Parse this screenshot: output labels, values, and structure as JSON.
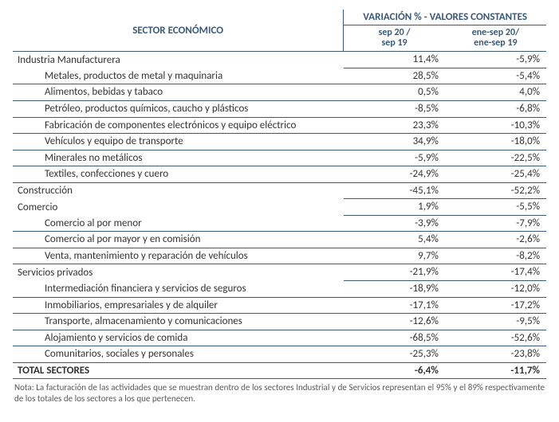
{
  "header": {
    "sector_label": "SECTOR ECONÓMICO",
    "variation_group": "VARIACIÓN % - VALORES CONSTANTES",
    "col1_top": "sep 20 /",
    "col1_bot": "sep 19",
    "col2_top": "ene-sep 20/",
    "col2_bot": "ene-sep 19"
  },
  "colors": {
    "header_text": "#3a5a78",
    "border": "#3a5a78",
    "body_text": "#333333",
    "note_text": "#5a5a5a",
    "background": "#ffffff"
  },
  "groups": [
    {
      "label": "Industria Manufacturera",
      "v1": "11,4%",
      "v2": "-5,9%",
      "subs": [
        {
          "label": "Metales, productos de metal y maquinaria",
          "v1": "28,5%",
          "v2": "-5,4%"
        },
        {
          "label": "Alimentos, bebidas y tabaco",
          "v1": "0,5%",
          "v2": "4,0%"
        },
        {
          "label": "Petróleo, productos químicos, caucho y plásticos",
          "v1": "-8,5%",
          "v2": "-6,8%"
        },
        {
          "label": "Fabricación de componentes electrónicos y equipo eléctrico",
          "v1": "23,3%",
          "v2": "-10,3%"
        },
        {
          "label": "Vehículos y equipo de transporte",
          "v1": "34,9%",
          "v2": "-18,0%"
        },
        {
          "label": "Minerales no metálicos",
          "v1": "-5,9%",
          "v2": "-22,5%"
        },
        {
          "label": "Textiles, confecciones y cuero",
          "v1": "-24,9%",
          "v2": "-25,4%"
        }
      ]
    },
    {
      "label": "Construcción",
      "v1": "-45,1%",
      "v2": "-52,2%",
      "subs": []
    },
    {
      "label": "Comercio",
      "v1": "1,9%",
      "v2": "-5,5%",
      "subs": [
        {
          "label": "Comercio al por menor",
          "v1": "-3,9%",
          "v2": "-7,9%"
        },
        {
          "label": "Comercio al por mayor y en comisión",
          "v1": "5,4%",
          "v2": "-2,6%"
        },
        {
          "label": "Venta, mantenimiento y reparación de vehículos",
          "v1": "9,7%",
          "v2": "-8,2%"
        }
      ]
    },
    {
      "label": "Servicios privados",
      "v1": "-21,9%",
      "v2": "-17,4%",
      "subs": [
        {
          "label": "Intermediación financiera y servicios de seguros",
          "v1": "-18,9%",
          "v2": "-12,0%"
        },
        {
          "label": "Inmobiliarios, empresariales y de alquiler",
          "v1": "-17,1%",
          "v2": "-17,2%"
        },
        {
          "label": "Transporte, almacenamiento y comunicaciones",
          "v1": "-12,6%",
          "v2": "-9,5%"
        },
        {
          "label": "Alojamiento y servicios de comida",
          "v1": "-68,5%",
          "v2": "-52,6%"
        },
        {
          "label": "Comunitarios, sociales y personales",
          "v1": "-25,3%",
          "v2": "-23,8%"
        }
      ]
    }
  ],
  "total": {
    "label": "TOTAL SECTORES",
    "v1": "-6,4%",
    "v2": "-11,7%"
  },
  "note": "Nota: La facturación de las actividades que se muestran dentro de los sectores Industrial y de Servicios representan el 95% y el 89% respectivamente de los totales de los sectores a los que pertenecen."
}
